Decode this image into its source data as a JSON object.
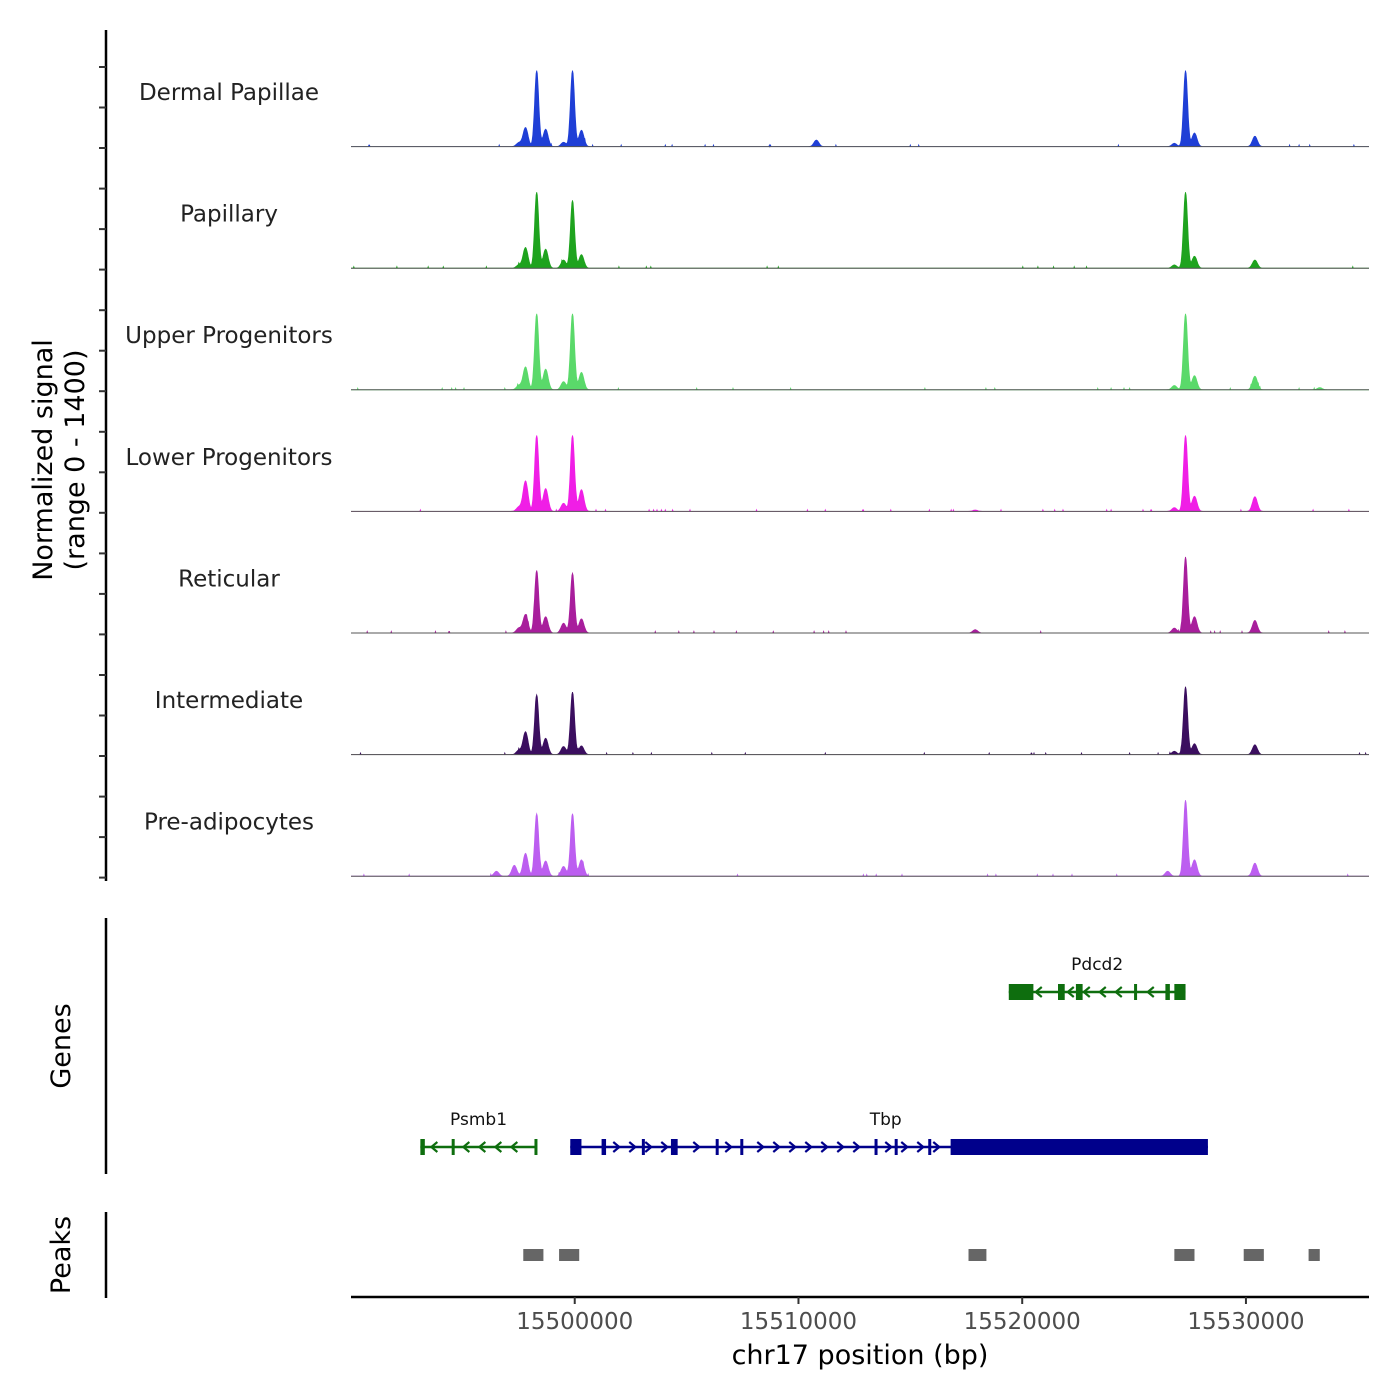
{
  "chart_data": {
    "type": "area",
    "title": "",
    "chromosome": "chr17",
    "xlabel": "chr17 position (bp)",
    "xlim": [
      15490000,
      15535500
    ],
    "xticks": [
      15500000,
      15510000,
      15520000,
      15530000
    ],
    "xtick_labels": [
      "15500000",
      "15510000",
      "15520000",
      "15530000"
    ],
    "ylabel_line1": "Normalized signal",
    "ylabel_line2": "(range 0 - 1400)",
    "ylim": [
      0,
      1400
    ],
    "tracks": [
      {
        "name": "Dermal Papillae",
        "color": "#1f3fd6",
        "peaks": [
          [
            15497500,
            70
          ],
          [
            15497800,
            350
          ],
          [
            15498300,
            1400
          ],
          [
            15498700,
            320
          ],
          [
            15499500,
            80
          ],
          [
            15499900,
            1400
          ],
          [
            15500300,
            300
          ],
          [
            15510800,
            120
          ],
          [
            15526800,
            60
          ],
          [
            15527300,
            1400
          ],
          [
            15527700,
            250
          ],
          [
            15530400,
            190
          ]
        ]
      },
      {
        "name": "Papillary",
        "color": "#1ea31e",
        "peaks": [
          [
            15497500,
            60
          ],
          [
            15497800,
            380
          ],
          [
            15498300,
            1400
          ],
          [
            15498700,
            350
          ],
          [
            15499500,
            150
          ],
          [
            15499900,
            1250
          ],
          [
            15500300,
            250
          ],
          [
            15526800,
            60
          ],
          [
            15527300,
            1400
          ],
          [
            15527700,
            220
          ],
          [
            15530400,
            150
          ]
        ]
      },
      {
        "name": "Upper Progenitors",
        "color": "#5ad96a",
        "peaks": [
          [
            15497500,
            80
          ],
          [
            15497800,
            420
          ],
          [
            15498300,
            1400
          ],
          [
            15498700,
            380
          ],
          [
            15499500,
            150
          ],
          [
            15499900,
            1400
          ],
          [
            15500300,
            320
          ],
          [
            15526800,
            80
          ],
          [
            15527300,
            1400
          ],
          [
            15527700,
            260
          ],
          [
            15530400,
            250
          ],
          [
            15533300,
            40
          ]
        ]
      },
      {
        "name": "Lower Progenitors",
        "color": "#f01ee6",
        "peaks": [
          [
            15497500,
            80
          ],
          [
            15497800,
            560
          ],
          [
            15498300,
            1400
          ],
          [
            15498700,
            420
          ],
          [
            15499500,
            150
          ],
          [
            15499900,
            1400
          ],
          [
            15500300,
            400
          ],
          [
            15517900,
            25
          ],
          [
            15526800,
            70
          ],
          [
            15527300,
            1400
          ],
          [
            15527700,
            280
          ],
          [
            15530400,
            270
          ]
        ]
      },
      {
        "name": "Reticular",
        "color": "#a81e9c",
        "peaks": [
          [
            15497500,
            90
          ],
          [
            15497800,
            340
          ],
          [
            15498300,
            1150
          ],
          [
            15498700,
            300
          ],
          [
            15499500,
            180
          ],
          [
            15499900,
            1100
          ],
          [
            15500300,
            260
          ],
          [
            15517900,
            60
          ],
          [
            15526800,
            90
          ],
          [
            15527300,
            1400
          ],
          [
            15527700,
            300
          ],
          [
            15530400,
            230
          ]
        ]
      },
      {
        "name": "Intermediate",
        "color": "#3b0e5f",
        "peaks": [
          [
            15497500,
            80
          ],
          [
            15497800,
            420
          ],
          [
            15498300,
            1100
          ],
          [
            15498700,
            300
          ],
          [
            15499500,
            150
          ],
          [
            15499900,
            1150
          ],
          [
            15500300,
            160
          ],
          [
            15526800,
            60
          ],
          [
            15527300,
            1250
          ],
          [
            15527700,
            200
          ],
          [
            15530400,
            180
          ]
        ]
      },
      {
        "name": "Pre-adipocytes",
        "color": "#bc5ef0",
        "peaks": [
          [
            15496500,
            90
          ],
          [
            15497300,
            200
          ],
          [
            15497800,
            420
          ],
          [
            15498300,
            1150
          ],
          [
            15498700,
            280
          ],
          [
            15499500,
            180
          ],
          [
            15499900,
            1150
          ],
          [
            15500300,
            300
          ],
          [
            15526500,
            90
          ],
          [
            15527300,
            1400
          ],
          [
            15527700,
            300
          ],
          [
            15530400,
            240
          ]
        ]
      }
    ],
    "genes_label": "Genes",
    "genes": [
      {
        "name": "Pdcd2",
        "strand": "-",
        "color": "#0e6e0e",
        "start": 15519400,
        "end": 15527300,
        "row": 0,
        "exons": [
          [
            15519400,
            15520500
          ],
          [
            15521600,
            15521900
          ],
          [
            15522400,
            15522700
          ],
          [
            15525000,
            15525100
          ],
          [
            15526400,
            15526600
          ],
          [
            15526800,
            15527300
          ]
        ]
      },
      {
        "name": "Psmb1",
        "strand": "-",
        "color": "#0e6e0e",
        "start": 15493100,
        "end": 15498300,
        "row": 1,
        "exons": [
          [
            15493100,
            15493300
          ],
          [
            15494500,
            15494600
          ],
          [
            15498200,
            15498300
          ]
        ]
      },
      {
        "name": "Tbp",
        "strand": "+",
        "color": "#00008b",
        "start": 15499800,
        "end": 15528300,
        "row": 1,
        "exons": [
          [
            15499800,
            15500300
          ],
          [
            15501200,
            15501400
          ],
          [
            15503000,
            15503100
          ],
          [
            15504300,
            15504600
          ],
          [
            15506300,
            15506400
          ],
          [
            15507400,
            15507500
          ],
          [
            15513400,
            15513500
          ],
          [
            15514300,
            15514400
          ],
          [
            15515800,
            15515900
          ],
          [
            15516800,
            15528300
          ]
        ]
      }
    ],
    "peaks_label": "Peaks",
    "peak_regions": [
      [
        15497700,
        15498600
      ],
      [
        15499300,
        15500200
      ],
      [
        15517600,
        15518400
      ],
      [
        15526800,
        15527700
      ],
      [
        15529900,
        15530800
      ],
      [
        15532800,
        15533300
      ]
    ]
  }
}
